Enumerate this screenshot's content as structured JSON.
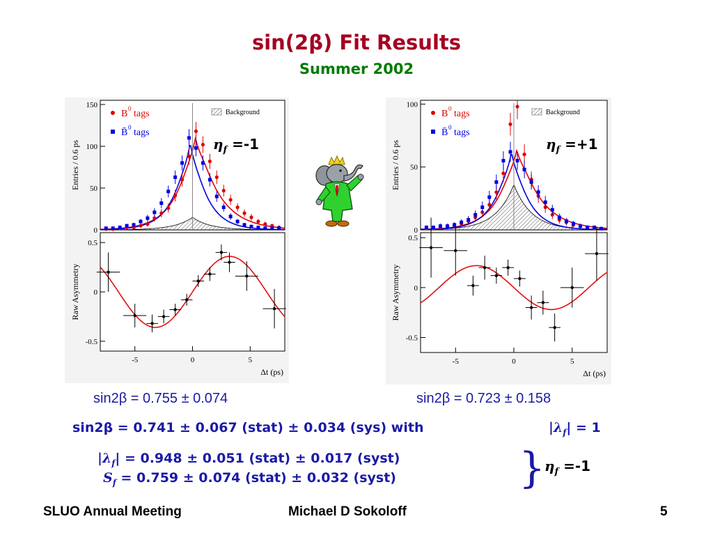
{
  "slide": {
    "title": "sin(2β) Fit Results",
    "subtitle": "Summer 2002"
  },
  "left_panel": {
    "eta_symbol": "η",
    "eta_sub": "f",
    "eta_value": " =-1",
    "result_text": "sin2β = 0.755 ± 0.074"
  },
  "right_panel": {
    "eta_symbol": "η",
    "eta_sub": "f",
    "eta_value": " =+1",
    "result_text": "sin2β = 0.723 ± 0.158"
  },
  "combined": {
    "line1_prefix": "sin2β",
    "line1_main": " = 0.741 ± 0.067 (stat) ± 0.034 (sys) with",
    "lambda_text": "|λ",
    "lambda_sub": "f",
    "lambda_rest": "| = 1",
    "line2_pre": "|λ",
    "line2_sub": "f",
    "line2_rest": "| = 0.948 ± 0.051 (stat) ± 0.017 (syst)",
    "line3_s": "S",
    "line3_sub": "f",
    "line3_rest": " = 0.759 ± 0.074 (stat) ± 0.032 (syst)",
    "brace": "}",
    "eta_symbol": "η",
    "eta_sub": "f",
    "eta_value": " =-1"
  },
  "footer": {
    "left": "SLUO Annual Meeting",
    "center": "Michael D Sokoloff",
    "page": "5"
  },
  "colors": {
    "title": "#a50021",
    "subtitle": "#007a00",
    "text_blue": "#1a1aa6",
    "b0_series": "#e00000",
    "b0bar_series": "#0000e0",
    "fit_curve": "#e01010",
    "background_fill": "#555555"
  },
  "chart_data": [
    {
      "id": "left-top",
      "type": "scatter",
      "ylabel": "Entries / 0.6 ps",
      "xlim": [
        -8,
        8
      ],
      "ylim": [
        0,
        155
      ],
      "yticks": [
        0,
        50,
        100,
        150
      ],
      "legend": [
        "B0 tags",
        "B̄0 tags",
        "Background"
      ],
      "legend_placement": "top",
      "series": [
        {
          "name": "B0 tags",
          "color": "#e00000",
          "x": [
            -7.5,
            -6.9,
            -6.3,
            -5.7,
            -5.1,
            -4.5,
            -3.9,
            -3.3,
            -2.7,
            -2.1,
            -1.5,
            -0.9,
            -0.3,
            0.3,
            0.9,
            1.5,
            2.1,
            2.7,
            3.3,
            3.9,
            4.5,
            5.1,
            5.7,
            6.3,
            6.9,
            7.5
          ],
          "y": [
            1,
            1,
            2,
            3,
            3,
            5,
            7,
            14,
            20,
            26,
            41,
            60,
            88,
            118,
            102,
            82,
            63,
            47,
            36,
            27,
            20,
            15,
            10,
            7,
            5,
            3
          ],
          "err": [
            1,
            1,
            1.5,
            2,
            2,
            2.5,
            3,
            4,
            5,
            5.5,
            7,
            8,
            10,
            11,
            10,
            9,
            8,
            7,
            6,
            5,
            4.5,
            4,
            3,
            2.5,
            2,
            2
          ]
        },
        {
          "name": "B̄0 tags",
          "color": "#0000e0",
          "x": [
            -7.5,
            -6.9,
            -6.3,
            -5.7,
            -5.1,
            -4.5,
            -3.9,
            -3.3,
            -2.7,
            -2.1,
            -1.5,
            -0.9,
            -0.3,
            0.3,
            0.9,
            1.5,
            2.1,
            2.7,
            3.3,
            3.9,
            4.5,
            5.1,
            5.7,
            6.3,
            6.9,
            7.5
          ],
          "y": [
            2,
            2,
            3,
            5,
            6,
            10,
            14,
            21,
            32,
            46,
            63,
            80,
            110,
            98,
            80,
            60,
            40,
            27,
            16,
            10,
            6,
            4,
            3,
            2,
            2,
            2
          ],
          "err": [
            1.5,
            1.5,
            2,
            2,
            2.5,
            3,
            4,
            5,
            6,
            7,
            8,
            9,
            10.5,
            10,
            9,
            8,
            6.5,
            5,
            4,
            3,
            2.5,
            2,
            2,
            1.5,
            1.5,
            1.5
          ]
        }
      ],
      "fit_peaks": {
        "B0 tags": 125,
        "B̄0 tags": 118
      },
      "background_peak": 15
    },
    {
      "id": "left-bottom",
      "type": "scatter",
      "xlabel": "Δt (ps)",
      "ylabel": "Raw Asymmetry",
      "xlim": [
        -8,
        8
      ],
      "ylim": [
        -0.6,
        0.6
      ],
      "xticks": [
        -5,
        0,
        5
      ],
      "yticks": [
        -0.5,
        0,
        0.5
      ],
      "points": {
        "x": [
          -7.3,
          -5.0,
          -3.5,
          -2.5,
          -1.5,
          -0.5,
          0.5,
          1.5,
          2.5,
          3.2,
          4.7,
          7.1
        ],
        "y": [
          0.2,
          -0.24,
          -0.32,
          -0.25,
          -0.18,
          -0.08,
          0.11,
          0.18,
          0.4,
          0.3,
          0.16,
          -0.17
        ],
        "xerr": [
          1.0,
          1.0,
          0.5,
          0.5,
          0.5,
          0.5,
          0.5,
          0.5,
          0.5,
          0.5,
          1.0,
          1.0
        ],
        "yerr": [
          0.2,
          0.12,
          0.09,
          0.07,
          0.06,
          0.06,
          0.06,
          0.07,
          0.08,
          0.1,
          0.15,
          0.2
        ]
      },
      "fit": {
        "amplitude": 0.36,
        "omega": 0.489,
        "sign": 1
      }
    },
    {
      "id": "right-top",
      "type": "scatter",
      "ylabel": "Entries / 0.6 ps",
      "xlim": [
        -8,
        8
      ],
      "ylim": [
        0,
        103
      ],
      "yticks": [
        0,
        50,
        100
      ],
      "legend": [
        "B0 tags",
        "B̄0 tags",
        "Background"
      ],
      "legend_placement": "top",
      "series": [
        {
          "name": "B0 tags",
          "color": "#e00000",
          "x": [
            -7.5,
            -6.9,
            -6.3,
            -5.7,
            -5.1,
            -4.5,
            -3.9,
            -3.3,
            -2.7,
            -2.1,
            -1.5,
            -0.9,
            -0.3,
            0.3,
            0.9,
            1.5,
            2.1,
            2.7,
            3.3,
            3.9,
            4.5,
            5.1,
            5.7,
            6.3,
            6.9,
            7.5
          ],
          "y": [
            1,
            1,
            2,
            3,
            4,
            5,
            7,
            10,
            14,
            20,
            30,
            45,
            84,
            98,
            60,
            40,
            27,
            18,
            12,
            8,
            6,
            4,
            3,
            2,
            1,
            1
          ],
          "err": [
            1,
            1,
            1.5,
            2,
            2,
            2.5,
            3,
            3.5,
            4,
            5,
            6,
            7,
            9,
            10,
            8,
            6.5,
            5.5,
            4.5,
            3.5,
            3,
            2.5,
            2,
            2,
            1.5,
            1,
            1
          ]
        },
        {
          "name": "B̄0 tags",
          "color": "#0000e0",
          "x": [
            -7.5,
            -6.9,
            -6.3,
            -5.7,
            -5.1,
            -4.5,
            -3.9,
            -3.3,
            -2.7,
            -2.1,
            -1.5,
            -0.9,
            -0.3,
            0.3,
            0.9,
            1.5,
            2.1,
            2.7,
            3.3,
            3.9,
            4.5,
            5.1,
            5.7,
            6.3,
            6.9,
            7.5
          ],
          "y": [
            2,
            2,
            3,
            3,
            4,
            6,
            8,
            12,
            18,
            26,
            38,
            55,
            62,
            55,
            48,
            38,
            30,
            22,
            16,
            10,
            7,
            5,
            3,
            2,
            2,
            1
          ],
          "err": [
            1.5,
            1.5,
            2,
            2,
            2,
            2.5,
            3,
            3.5,
            4.5,
            5,
            6,
            7.5,
            8,
            7.5,
            7,
            6,
            5.5,
            5,
            4,
            3,
            2.5,
            2,
            2,
            1.5,
            1.5,
            1
          ]
        }
      ],
      "fit_peaks": {
        "B0 tags": 72,
        "B̄0 tags": 70
      },
      "background_peak": 36
    },
    {
      "id": "right-bottom",
      "type": "scatter",
      "xlabel": "Δt (ps)",
      "ylabel": "Raw Asymmetry",
      "xlim": [
        -8,
        8
      ],
      "ylim": [
        -0.65,
        0.55
      ],
      "xticks": [
        -5,
        0,
        5
      ],
      "yticks": [
        -0.5,
        0,
        0.5
      ],
      "points": {
        "x": [
          -7.1,
          -5.0,
          -3.5,
          -2.5,
          -1.5,
          -0.5,
          0.5,
          1.5,
          2.5,
          3.5,
          5.0,
          7.1
        ],
        "y": [
          0.4,
          0.37,
          0.02,
          0.2,
          0.12,
          0.2,
          0.09,
          -0.2,
          -0.15,
          -0.4,
          0.0,
          0.34
        ],
        "xerr": [
          1.0,
          1.0,
          0.5,
          0.5,
          0.5,
          0.5,
          0.5,
          0.5,
          0.5,
          0.5,
          1.0,
          1.0
        ],
        "yerr": [
          0.3,
          0.25,
          0.1,
          0.12,
          0.08,
          0.08,
          0.08,
          0.12,
          0.12,
          0.14,
          0.2,
          0.27
        ]
      },
      "fit": {
        "amplitude": 0.22,
        "omega": 0.489,
        "sign": -1
      }
    }
  ]
}
